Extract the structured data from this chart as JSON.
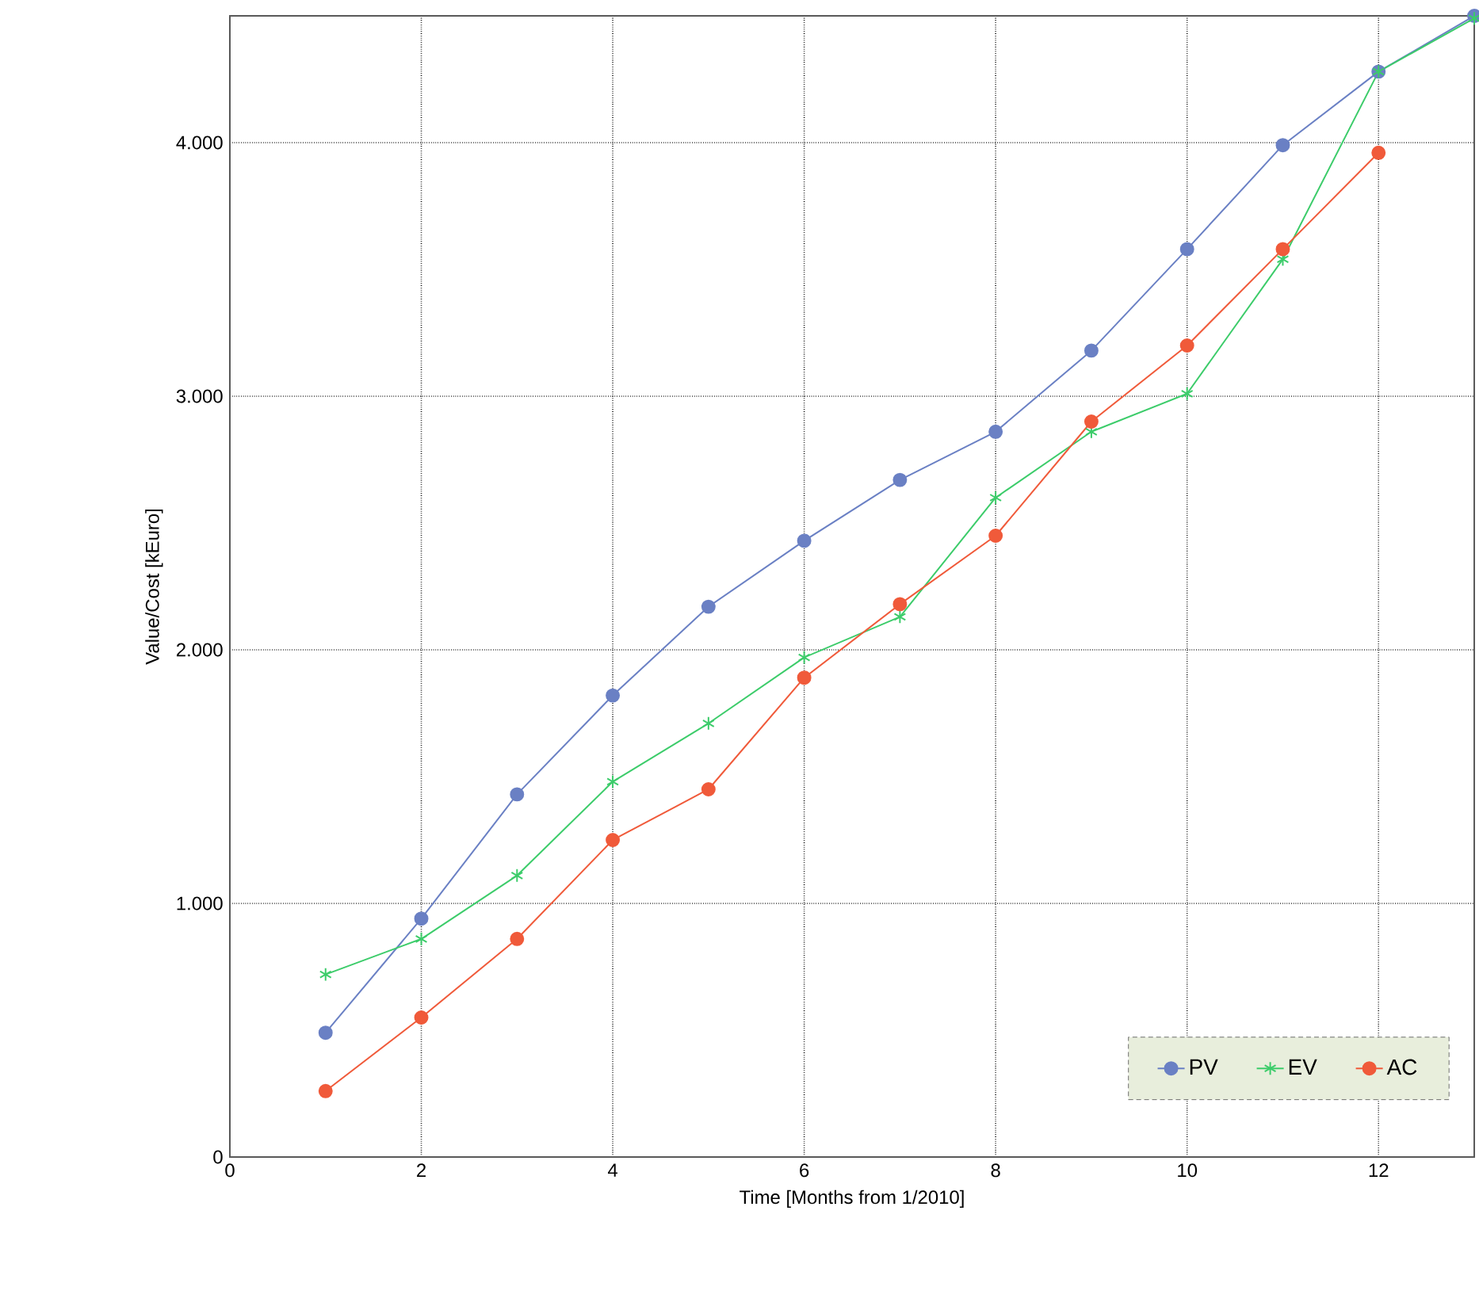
{
  "chart_data": {
    "type": "line",
    "xlabel": "Time [Months from 1/2010]",
    "ylabel": "Value/Cost [kEuro]",
    "x": [
      1,
      2,
      3,
      4,
      5,
      6,
      7,
      8,
      9,
      10,
      11,
      12,
      13
    ],
    "series": [
      {
        "name": "PV",
        "color": "#6a80c4",
        "marker": "circle",
        "values": [
          490,
          940,
          1430,
          1820,
          2170,
          2430,
          2670,
          2860,
          3180,
          3580,
          3990,
          4280,
          4500
        ]
      },
      {
        "name": "EV",
        "color": "#3ccc6a",
        "marker": "cross",
        "values": [
          720,
          860,
          1110,
          1480,
          1710,
          1970,
          2130,
          2600,
          2860,
          3010,
          3540,
          4280,
          4490
        ]
      },
      {
        "name": "AC",
        "color": "#f05a3a",
        "marker": "circle",
        "values": [
          260,
          550,
          860,
          1250,
          1450,
          1890,
          2180,
          2450,
          2900,
          3200,
          3580,
          3960,
          null
        ]
      }
    ],
    "xlim": [
      0,
      13
    ],
    "ylim": [
      0,
      4500
    ],
    "xticks": [
      0,
      2,
      4,
      6,
      8,
      10,
      12
    ],
    "yticks": [
      0,
      {
        "value": 1000,
        "label": "1.000"
      },
      {
        "value": 2000,
        "label": "2.000"
      },
      {
        "value": 3000,
        "label": "3.000"
      },
      {
        "value": 4000,
        "label": "4.000"
      }
    ],
    "grid": true,
    "legend": "bottom right",
    "line_style": "solid"
  }
}
